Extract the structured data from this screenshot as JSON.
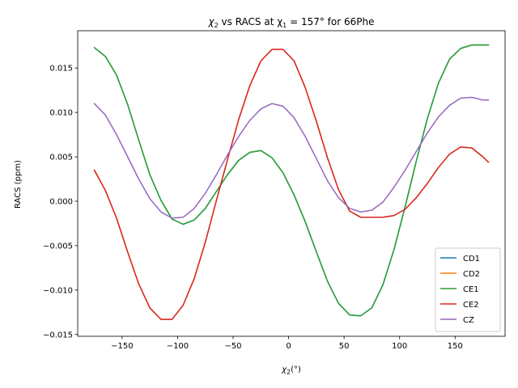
{
  "chart_data": {
    "type": "line",
    "title": {
      "pre": "χ",
      "pre_sub": "2",
      "mid": " vs RACS at χ",
      "mid_sub": "1",
      "post": " = 157° for 66Phe"
    },
    "xlabel": {
      "pre": "χ",
      "sub": "2",
      "post": "(°)"
    },
    "ylabel": "RACS (ppm)",
    "xlim": [
      -190,
      195
    ],
    "ylim": [
      -0.0152,
      0.0192
    ],
    "xticks": [
      -150,
      -100,
      -50,
      0,
      50,
      100,
      150
    ],
    "xtick_labels": [
      "−150",
      "−100",
      "−50",
      "0",
      "50",
      "100",
      "150"
    ],
    "yticks": [
      -0.015,
      -0.01,
      -0.005,
      0.0,
      0.005,
      0.01,
      0.015
    ],
    "ytick_labels": [
      "−0.015",
      "−0.010",
      "−0.005",
      "0.000",
      "0.005",
      "0.010",
      "0.015"
    ],
    "grid": false,
    "legend_position": "lower right",
    "series": [
      {
        "name": "CD1",
        "color": "#1f77b4",
        "x": [
          -175,
          -165,
          -155,
          -145,
          -135,
          -125,
          -115,
          -105,
          -95,
          -85,
          -75,
          -65,
          -55,
          -45,
          -35,
          -25,
          -15,
          -5,
          5,
          15,
          25,
          35,
          45,
          55,
          65,
          75,
          85,
          95,
          105,
          115,
          125,
          135,
          145,
          155,
          165,
          175,
          180
        ],
        "y": [
          0.0173,
          0.0163,
          0.0142,
          0.0109,
          0.0069,
          0.003,
          0.0001,
          -0.002,
          -0.0026,
          -0.0021,
          -0.0008,
          0.0011,
          0.003,
          0.0046,
          0.0055,
          0.0057,
          0.0049,
          0.0032,
          0.0007,
          -0.0023,
          -0.0057,
          -0.009,
          -0.0115,
          -0.0128,
          -0.0129,
          -0.012,
          -0.0094,
          -0.0054,
          -0.0006,
          0.0045,
          0.0093,
          0.0133,
          0.016,
          0.0172,
          0.0176,
          0.0176,
          0.0176
        ]
      },
      {
        "name": "CD2",
        "color": "#ff7f0e",
        "x": [
          -175,
          -165,
          -155,
          -145,
          -135,
          -125,
          -115,
          -105,
          -95,
          -85,
          -75,
          -65,
          -55,
          -45,
          -35,
          -25,
          -15,
          -5,
          5,
          15,
          25,
          35,
          45,
          55,
          65,
          75,
          85,
          95,
          105,
          115,
          125,
          135,
          145,
          155,
          165,
          175,
          180
        ],
        "y": [
          0.0035,
          0.0012,
          -0.0019,
          -0.0057,
          -0.0093,
          -0.012,
          -0.0133,
          -0.0133,
          -0.0117,
          -0.0087,
          -0.0046,
          0.0001,
          0.0047,
          0.0092,
          0.013,
          0.0158,
          0.0171,
          0.0171,
          0.0158,
          0.0128,
          0.009,
          0.0049,
          0.0013,
          -0.0011,
          -0.0018,
          -0.0018,
          -0.0018,
          -0.0016,
          -0.0009,
          0.0004,
          0.002,
          0.0038,
          0.0053,
          0.0061,
          0.006,
          0.005,
          0.0044
        ]
      },
      {
        "name": "CE1",
        "color": "#2ca02c",
        "x": [
          -175,
          -165,
          -155,
          -145,
          -135,
          -125,
          -115,
          -105,
          -95,
          -85,
          -75,
          -65,
          -55,
          -45,
          -35,
          -25,
          -15,
          -5,
          5,
          15,
          25,
          35,
          45,
          55,
          65,
          75,
          85,
          95,
          105,
          115,
          125,
          135,
          145,
          155,
          165,
          175,
          180
        ],
        "y": [
          0.0173,
          0.0163,
          0.0142,
          0.0109,
          0.0069,
          0.003,
          0.0001,
          -0.002,
          -0.0026,
          -0.0021,
          -0.0008,
          0.0011,
          0.003,
          0.0046,
          0.0055,
          0.0057,
          0.0049,
          0.0032,
          0.0007,
          -0.0023,
          -0.0057,
          -0.009,
          -0.0115,
          -0.0128,
          -0.0129,
          -0.012,
          -0.0094,
          -0.0054,
          -0.0006,
          0.0045,
          0.0093,
          0.0133,
          0.016,
          0.0172,
          0.0176,
          0.0176,
          0.0176
        ]
      },
      {
        "name": "CE2",
        "color": "#d62728",
        "x": [
          -175,
          -165,
          -155,
          -145,
          -135,
          -125,
          -115,
          -105,
          -95,
          -85,
          -75,
          -65,
          -55,
          -45,
          -35,
          -25,
          -15,
          -5,
          5,
          15,
          25,
          35,
          45,
          55,
          65,
          75,
          85,
          95,
          105,
          115,
          125,
          135,
          145,
          155,
          165,
          175,
          180
        ],
        "y": [
          0.0035,
          0.0012,
          -0.0019,
          -0.0057,
          -0.0093,
          -0.012,
          -0.0133,
          -0.0133,
          -0.0117,
          -0.0087,
          -0.0046,
          0.0001,
          0.0047,
          0.0092,
          0.013,
          0.0158,
          0.0171,
          0.0171,
          0.0158,
          0.0128,
          0.009,
          0.0049,
          0.0013,
          -0.0011,
          -0.0018,
          -0.0018,
          -0.0018,
          -0.0016,
          -0.0009,
          0.0004,
          0.002,
          0.0038,
          0.0053,
          0.0061,
          0.006,
          0.005,
          0.0044
        ]
      },
      {
        "name": "CZ",
        "color": "#9467bd",
        "x": [
          -175,
          -165,
          -155,
          -145,
          -135,
          -125,
          -115,
          -105,
          -95,
          -85,
          -75,
          -65,
          -55,
          -45,
          -35,
          -25,
          -15,
          -5,
          5,
          15,
          25,
          35,
          45,
          55,
          65,
          75,
          85,
          95,
          105,
          115,
          125,
          135,
          145,
          155,
          165,
          175,
          180
        ],
        "y": [
          0.011,
          0.0097,
          0.0075,
          0.005,
          0.0025,
          0.0003,
          -0.0012,
          -0.0019,
          -0.0018,
          -0.0008,
          0.0009,
          0.003,
          0.0052,
          0.0073,
          0.0091,
          0.0104,
          0.011,
          0.0107,
          0.0094,
          0.0073,
          0.0048,
          0.0023,
          0.0004,
          -0.0008,
          -0.0012,
          -0.001,
          -0.0001,
          0.0016,
          0.0035,
          0.0056,
          0.0077,
          0.0095,
          0.0108,
          0.0116,
          0.0117,
          0.0114,
          0.0114
        ]
      }
    ]
  }
}
